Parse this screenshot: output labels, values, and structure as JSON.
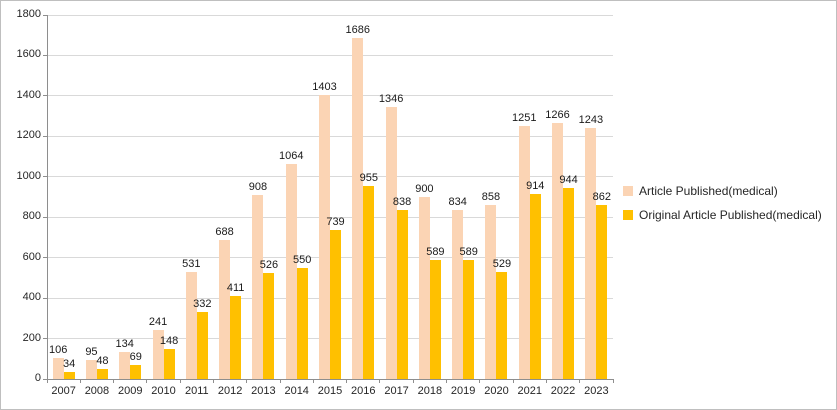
{
  "chart_data": {
    "type": "bar",
    "title": "",
    "categories": [
      "2007",
      "2008",
      "2009",
      "2010",
      "2011",
      "2012",
      "2013",
      "2014",
      "2015",
      "2016",
      "2017",
      "2018",
      "2019",
      "2020",
      "2021",
      "2022",
      "2023"
    ],
    "series": [
      {
        "name": "Article Published(medical)",
        "color": "#fbd4b4",
        "values": [
          106,
          95,
          134,
          241,
          531,
          688,
          908,
          1064,
          1403,
          1686,
          1346,
          900,
          834,
          858,
          1251,
          1266,
          1243
        ]
      },
      {
        "name": "Original Article Published(medical)",
        "color": "#ffc000",
        "values": [
          34,
          48,
          69,
          148,
          332,
          411,
          526,
          550,
          739,
          955,
          838,
          589,
          589,
          529,
          914,
          944,
          862
        ]
      }
    ],
    "ylim": [
      0,
      1800
    ],
    "ytick_step": 200,
    "grid": true,
    "legend_position": "right",
    "colors": {
      "gridline": "#d9d9d9",
      "axis": "#8e8e8e",
      "text": "#262626",
      "background": "#ffffff"
    }
  }
}
